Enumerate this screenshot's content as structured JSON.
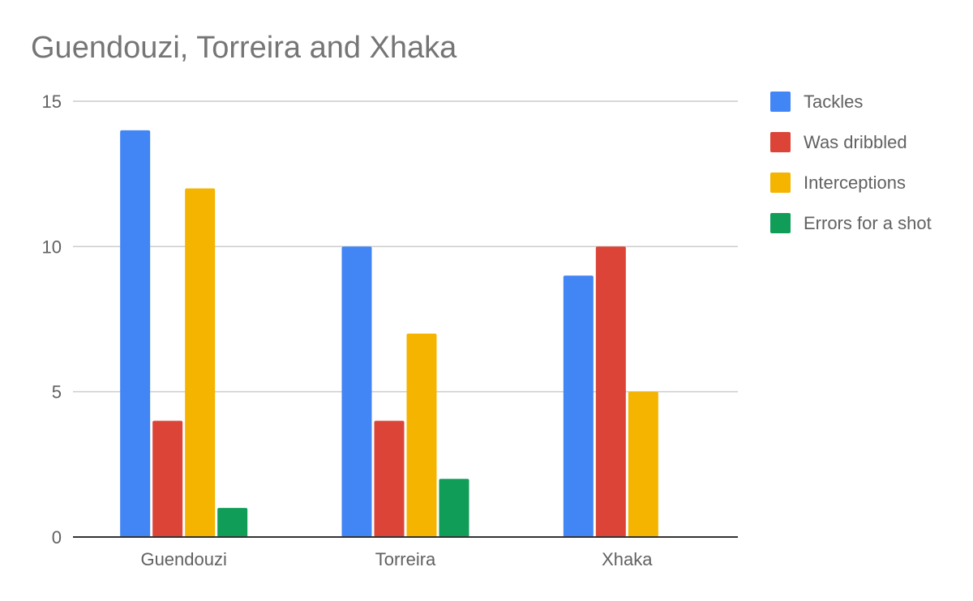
{
  "chart_data": {
    "type": "bar",
    "title": "Guendouzi, Torreira and Xhaka",
    "xlabel": "",
    "ylabel": "",
    "categories": [
      "Guendouzi",
      "Torreira",
      "Xhaka"
    ],
    "series": [
      {
        "name": "Tackles",
        "color": "#4285f4",
        "values": [
          14,
          10,
          9
        ]
      },
      {
        "name": "Was dribbled",
        "color": "#db4437",
        "values": [
          4,
          4,
          10
        ]
      },
      {
        "name": "Interceptions",
        "color": "#f4b400",
        "values": [
          12,
          7,
          5
        ]
      },
      {
        "name": "Errors for a shot",
        "color": "#0f9d58",
        "values": [
          1,
          2,
          0
        ]
      }
    ],
    "ylim": [
      0,
      15
    ],
    "yticks": [
      0,
      5,
      10,
      15
    ],
    "grid": true,
    "legend_position": "right"
  }
}
